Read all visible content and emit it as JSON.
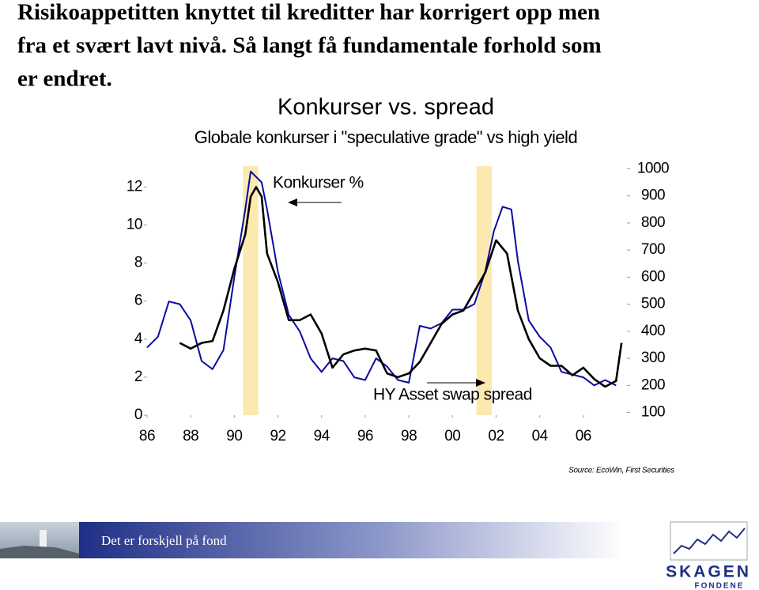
{
  "header": {
    "title_lines": [
      "Risikoappetitten knyttet til kreditter har korrigert opp men",
      "fra et svært lavt nivå. Så langt få fundamentale forhold som",
      "er endret."
    ]
  },
  "chart_data": {
    "type": "line",
    "title": "Konkurser vs. spread",
    "subtitle": "Globale konkurser i \"speculative grade\" vs high yield",
    "xlim": [
      1986,
      2008
    ],
    "xticks": [
      {
        "value": 1986,
        "label": "86"
      },
      {
        "value": 1988,
        "label": "88"
      },
      {
        "value": 1990,
        "label": "90"
      },
      {
        "value": 1992,
        "label": "92"
      },
      {
        "value": 1994,
        "label": "94"
      },
      {
        "value": 1996,
        "label": "96"
      },
      {
        "value": 1998,
        "label": "98"
      },
      {
        "value": 2000,
        "label": "00"
      },
      {
        "value": 2002,
        "label": "02"
      },
      {
        "value": 2004,
        "label": "04"
      },
      {
        "value": 2006,
        "label": "06"
      }
    ],
    "ylim": [
      0,
      13.1
    ],
    "yticks": [
      0,
      2,
      4,
      6,
      8,
      10,
      12
    ],
    "y2lim": [
      90,
      1010
    ],
    "y2ticks": [
      100,
      200,
      300,
      400,
      500,
      600,
      700,
      800,
      900,
      1000
    ],
    "shaded_periods": {
      "color": "#fbe9b0",
      "ranges": [
        [
          1990.4,
          1991.1
        ],
        [
          2001.1,
          2001.8
        ]
      ]
    },
    "series": [
      {
        "name": "Konkurser %",
        "color": "#000000",
        "axis": "y",
        "x": [
          1987.5,
          1988.0,
          1988.5,
          1989.0,
          1989.5,
          1990.0,
          1990.5,
          1990.75,
          1991.0,
          1991.25,
          1991.5,
          1992.0,
          1992.5,
          1993.0,
          1993.5,
          1994.0,
          1994.5,
          1995.0,
          1995.5,
          1996.0,
          1996.5,
          1997.0,
          1997.5,
          1998.0,
          1998.5,
          1999.0,
          1999.5,
          2000.0,
          2000.5,
          2001.0,
          2001.5,
          2002.0,
          2002.5,
          2003.0,
          2003.5,
          2004.0,
          2004.5,
          2005.0,
          2005.5,
          2006.0,
          2006.5,
          2007.0,
          2007.5,
          2007.75
        ],
        "values": [
          3.8,
          3.5,
          3.8,
          3.9,
          5.5,
          7.7,
          9.5,
          11.5,
          12.0,
          11.5,
          8.5,
          7.0,
          5.0,
          5.0,
          5.3,
          4.3,
          2.5,
          3.2,
          3.4,
          3.5,
          3.4,
          2.2,
          2.0,
          2.2,
          2.8,
          3.8,
          4.8,
          5.3,
          5.5,
          6.5,
          7.5,
          9.2,
          8.5,
          5.5,
          4.0,
          3.0,
          2.6,
          2.6,
          2.1,
          2.5,
          1.9,
          1.5,
          1.8,
          3.8
        ]
      },
      {
        "name": "HY Asset swap spread",
        "color": "#0a0aa0",
        "axis": "y2",
        "x": [
          1986.0,
          1986.5,
          1987.0,
          1987.5,
          1988.0,
          1988.5,
          1989.0,
          1989.5,
          1990.0,
          1990.5,
          1990.75,
          1991.25,
          1991.5,
          1992.0,
          1992.5,
          1993.0,
          1993.5,
          1994.0,
          1994.5,
          1995.0,
          1995.5,
          1996.0,
          1996.5,
          1997.0,
          1997.5,
          1998.0,
          1998.5,
          1999.0,
          1999.5,
          2000.0,
          2000.5,
          2001.0,
          2001.5,
          2001.9,
          2002.3,
          2002.7,
          2003.0,
          2003.5,
          2004.0,
          2004.5,
          2005.0,
          2005.5,
          2006.0,
          2006.5,
          2007.0,
          2007.5
        ],
        "values": [
          340,
          380,
          510,
          500,
          440,
          290,
          260,
          330,
          600,
          850,
          990,
          950,
          850,
          620,
          460,
          400,
          300,
          250,
          300,
          290,
          230,
          220,
          300,
          270,
          220,
          210,
          420,
          410,
          430,
          480,
          480,
          500,
          620,
          770,
          860,
          850,
          660,
          440,
          380,
          340,
          250,
          240,
          230,
          200,
          220,
          200
        ]
      }
    ]
  },
  "source": "Source: EcoWin, First Securities",
  "footer": {
    "slogan": "Det er forskjell på fond",
    "logo_name": "SKAGEN",
    "logo_sub": "FONDENE"
  }
}
